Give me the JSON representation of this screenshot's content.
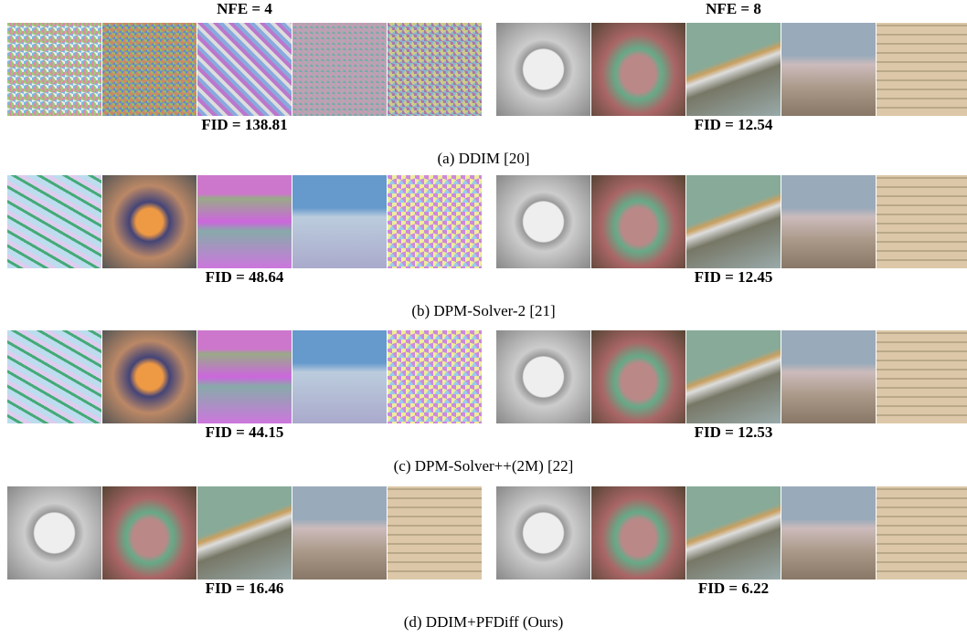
{
  "columns": [
    "NFE = 4",
    "NFE = 8"
  ],
  "rows": [
    {
      "fid": [
        "FID = 138.81",
        "FID = 12.54"
      ],
      "caption": "(a) DDIM [20]"
    },
    {
      "fid": [
        "FID = 48.64",
        "FID = 12.45"
      ],
      "caption": "(b) DPM-Solver-2 [21]"
    },
    {
      "fid": [
        "FID = 44.15",
        "FID = 12.53"
      ],
      "caption": "(c) DPM-Solver++(2M) [22]"
    },
    {
      "fid": [
        "FID = 16.46",
        "FID = 6.22"
      ],
      "caption": "(d) DDIM+PFDiff (Ours)"
    }
  ]
}
